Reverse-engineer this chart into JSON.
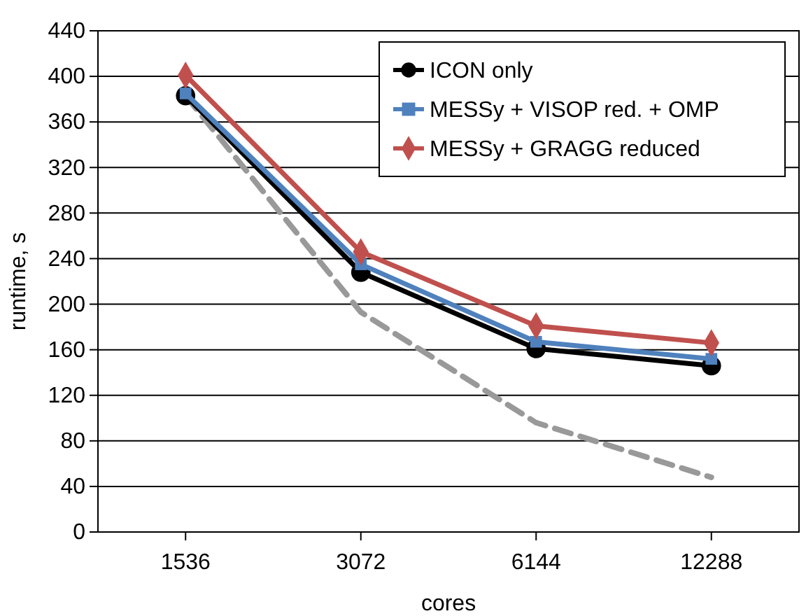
{
  "chart_data": {
    "type": "line",
    "xlabel": "cores",
    "ylabel": "runtime, s",
    "categories": [
      "1536",
      "3072",
      "6144",
      "12288"
    ],
    "ylim": [
      0,
      440
    ],
    "yticks": [
      0,
      40,
      80,
      120,
      160,
      200,
      240,
      280,
      320,
      360,
      400,
      440
    ],
    "grid": "y",
    "legend": "top right",
    "series": [
      {
        "color": "#999999",
        "values": [
          383,
          193,
          96,
          48
        ],
        "marker": "none",
        "line_style": "dashed"
      },
      {
        "name": "ICON only",
        "color": "#000000",
        "values": [
          383,
          228,
          161,
          146
        ],
        "marker": "circle",
        "line_style": "solid"
      },
      {
        "name": "MESSy + VISOP red. + OMP",
        "color": "#4f81bd",
        "values": [
          385,
          235,
          167,
          152
        ],
        "marker": "square",
        "line_style": "solid"
      },
      {
        "name": "MESSy + GRAGG reduced",
        "color": "#c0504d",
        "values": [
          401,
          246,
          181,
          166
        ],
        "marker": "diamond",
        "line_style": "solid"
      }
    ]
  }
}
